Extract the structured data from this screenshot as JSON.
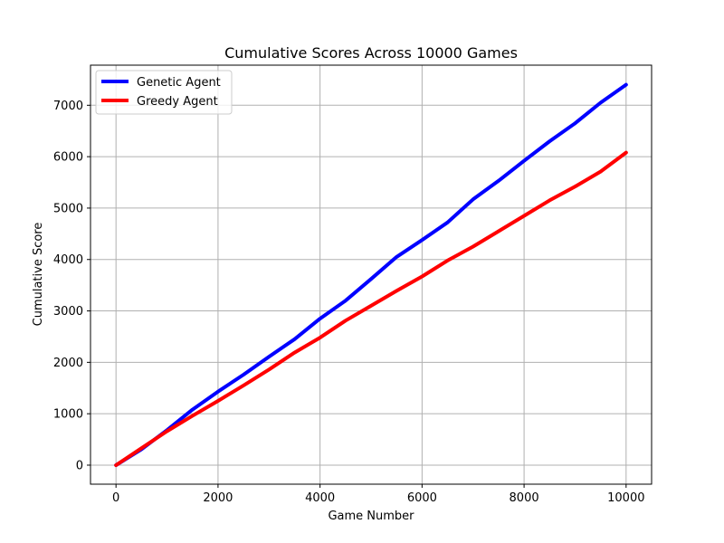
{
  "chart_data": {
    "type": "line",
    "title": "Cumulative Scores Across 10000 Games",
    "xlabel": "Game Number",
    "ylabel": "Cumulative Score",
    "xlim": [
      -500,
      10500
    ],
    "ylim": [
      -370,
      7780
    ],
    "xticks": [
      0,
      2000,
      4000,
      6000,
      8000,
      10000
    ],
    "yticks": [
      0,
      1000,
      2000,
      3000,
      4000,
      5000,
      6000,
      7000
    ],
    "grid": true,
    "legend_position": "upper-left",
    "series": [
      {
        "name": "Genetic Agent",
        "color": "#0000ff",
        "x": [
          0,
          500,
          1000,
          1500,
          2000,
          2500,
          3000,
          3500,
          4000,
          4500,
          5000,
          5500,
          6000,
          6500,
          7000,
          7500,
          8000,
          8500,
          9000,
          9500,
          10000
        ],
        "y": [
          0,
          310,
          680,
          1080,
          1430,
          1760,
          2110,
          2450,
          2850,
          3200,
          3620,
          4050,
          4380,
          4720,
          5170,
          5530,
          5920,
          6300,
          6650,
          7050,
          7400
        ]
      },
      {
        "name": "Greedy Agent",
        "color": "#ff0000",
        "x": [
          0,
          500,
          1000,
          1500,
          2000,
          2500,
          3000,
          3500,
          4000,
          4500,
          5000,
          5500,
          6000,
          6500,
          7000,
          7500,
          8000,
          8500,
          9000,
          9500,
          10000
        ],
        "y": [
          0,
          330,
          660,
          960,
          1250,
          1550,
          1860,
          2190,
          2480,
          2810,
          3100,
          3390,
          3670,
          3980,
          4250,
          4550,
          4850,
          5150,
          5420,
          5710,
          6080
        ]
      }
    ]
  }
}
